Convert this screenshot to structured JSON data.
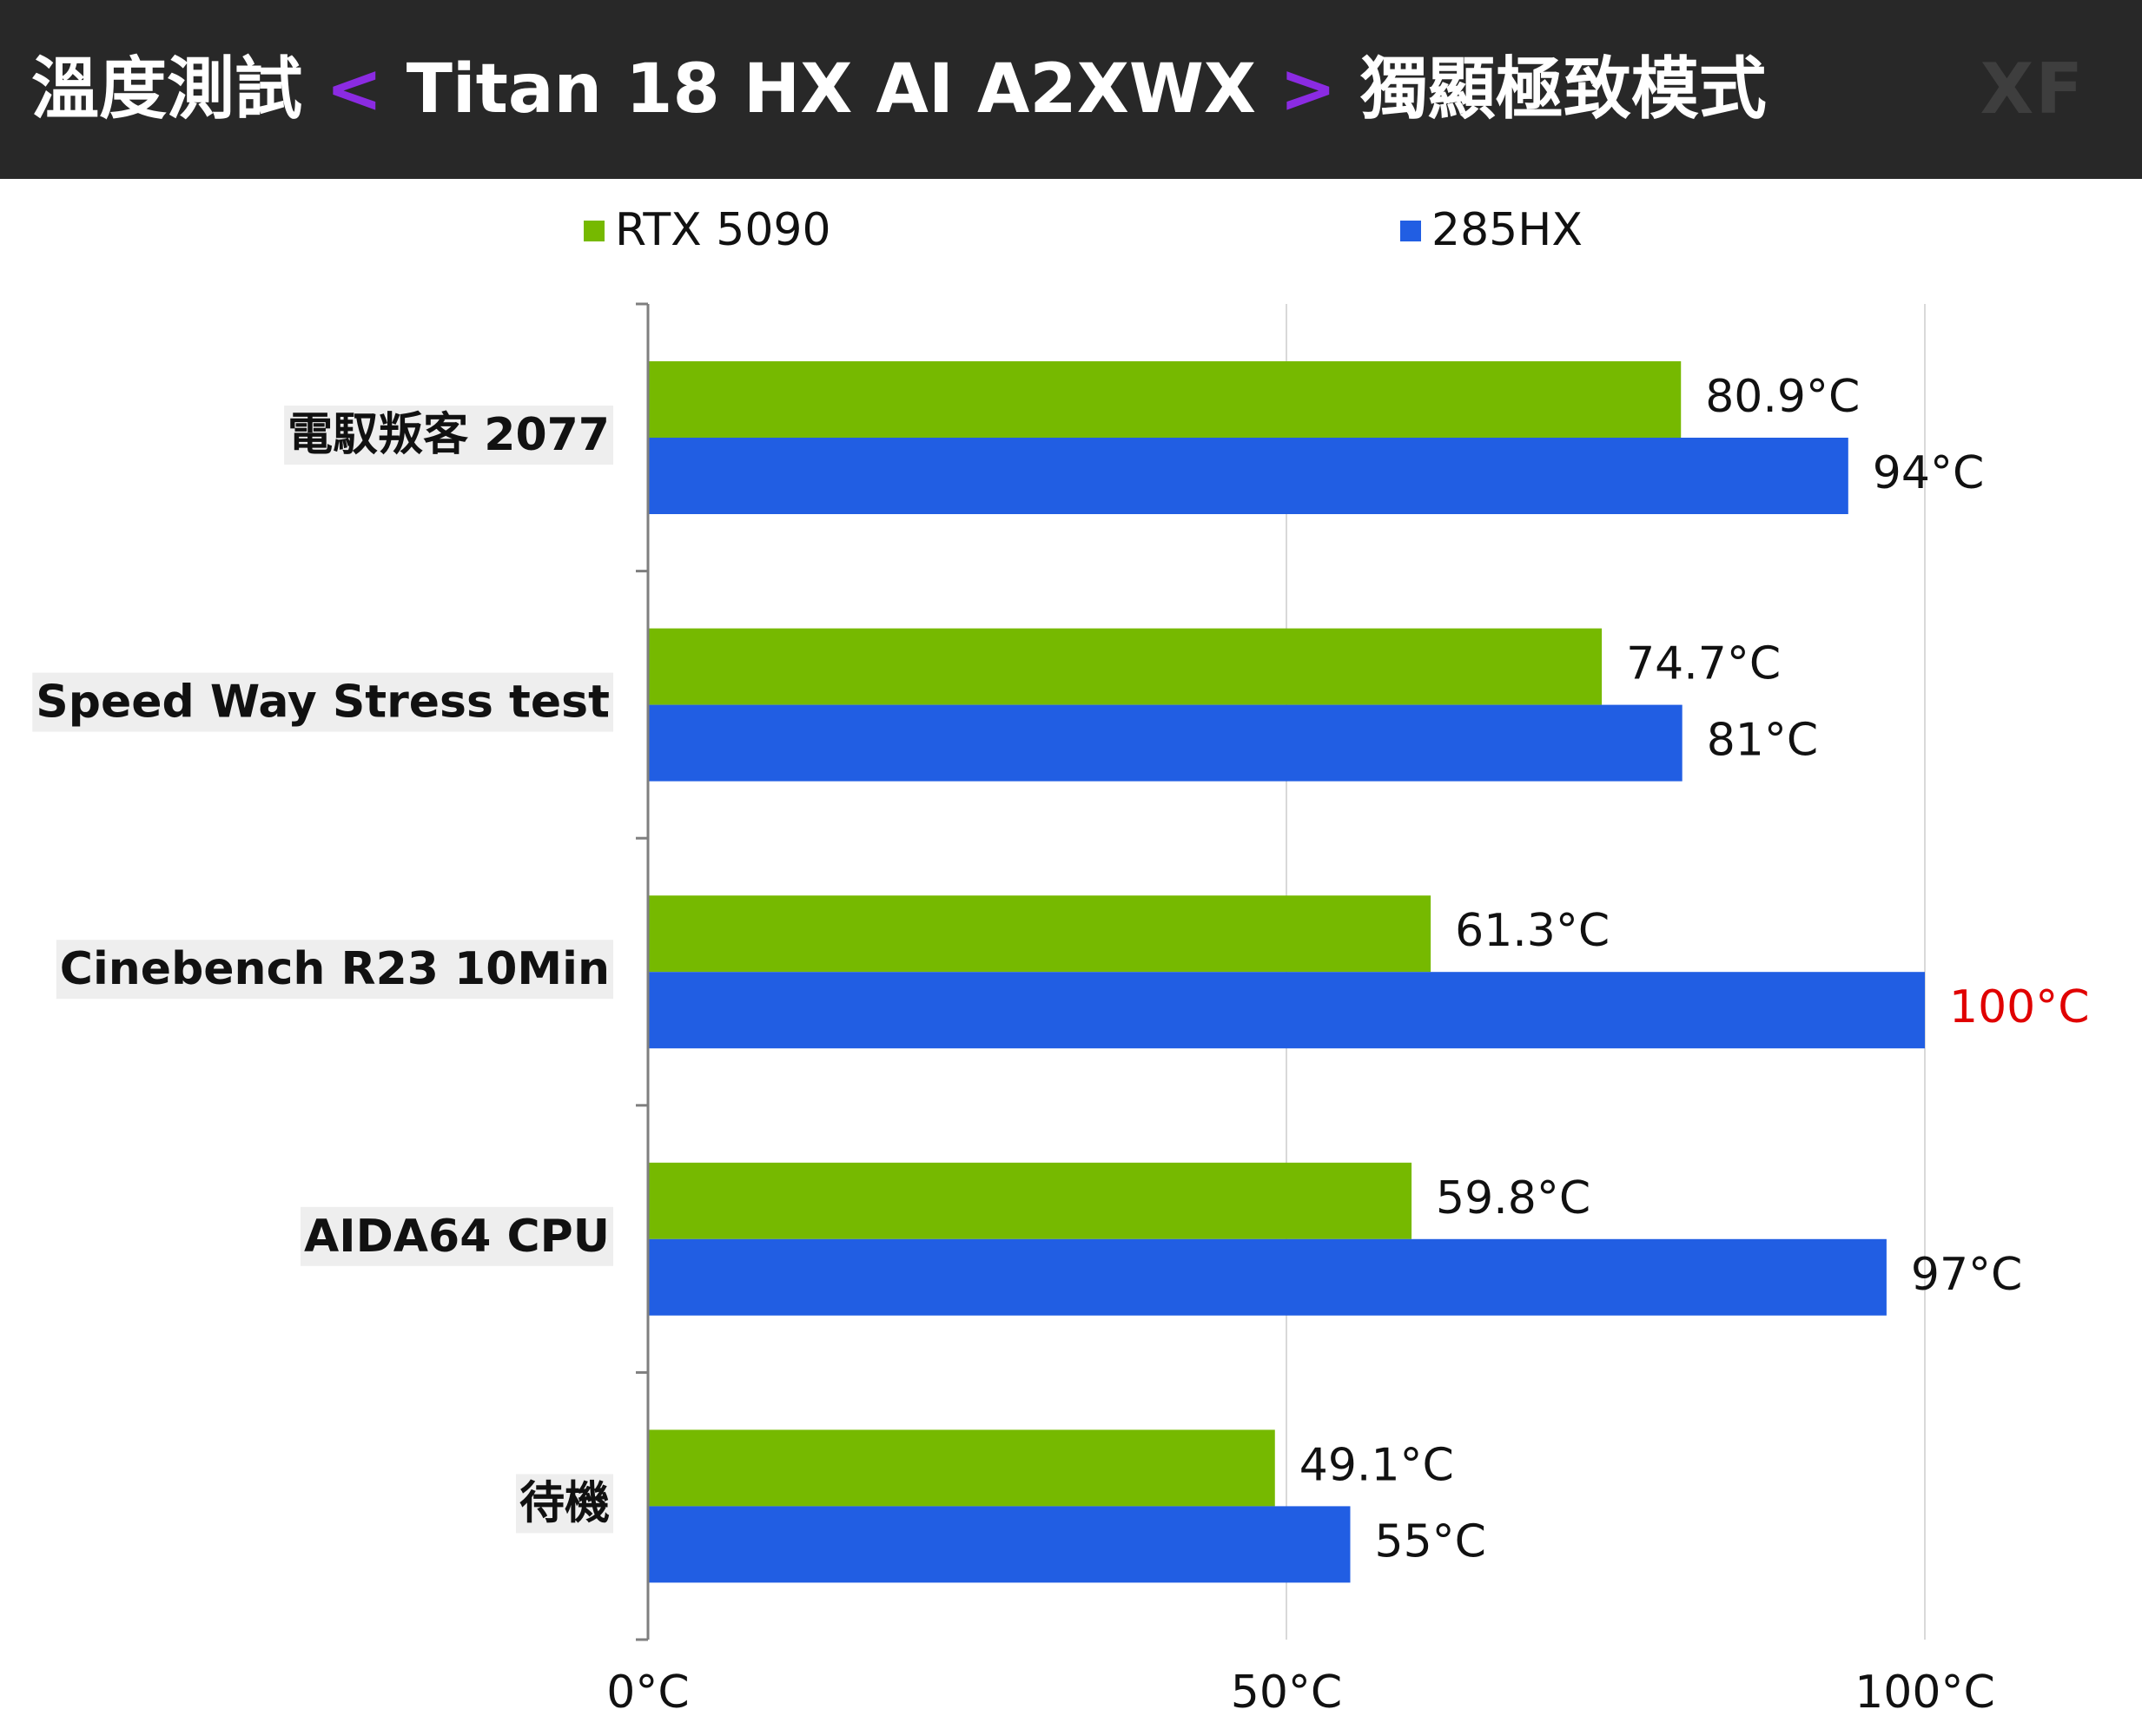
{
  "header": {
    "title_prefix": "溫度測試",
    "bracket_open": "<",
    "title_model": "Titan 18 HX AI A2XWX",
    "bracket_close": ">",
    "title_suffix": "獨顯極致模式",
    "watermark": "XF"
  },
  "colors": {
    "header_bg": "#282828",
    "bracket": "#8b2be2",
    "rtx5090": "#76b900",
    "285hx": "#215ee3",
    "highlight_label": "#e00000",
    "gridline": "#d9d9d9",
    "category_label_bg": "#eeeeee"
  },
  "chart_data": {
    "type": "bar",
    "orientation": "horizontal",
    "categories": [
      "電馭叛客 2077",
      "Speed Way Stress test",
      "Cinebench R23 10Min",
      "AIDA64 CPU",
      "待機"
    ],
    "series": [
      {
        "name": "RTX 5090",
        "color": "#76b900",
        "values": [
          80.9,
          74.7,
          61.3,
          59.8,
          49.1
        ],
        "labels": [
          "80.9°C",
          "74.7°C",
          "61.3°C",
          "59.8°C",
          "49.1°C"
        ]
      },
      {
        "name": "285HX",
        "color": "#215ee3",
        "values": [
          94,
          81,
          100,
          97,
          55
        ],
        "labels": [
          "94°C",
          "81°C",
          "100°C",
          "97°C",
          "55°C"
        ]
      }
    ],
    "highlighted_labels": [
      {
        "series": 1,
        "category": 2,
        "color": "#e00000"
      }
    ],
    "xlim": [
      0,
      100
    ],
    "xticks": [
      0,
      50,
      100
    ],
    "xtick_labels": [
      "0°C",
      "50°C",
      "100°C"
    ],
    "grid": true,
    "legend": "top"
  }
}
